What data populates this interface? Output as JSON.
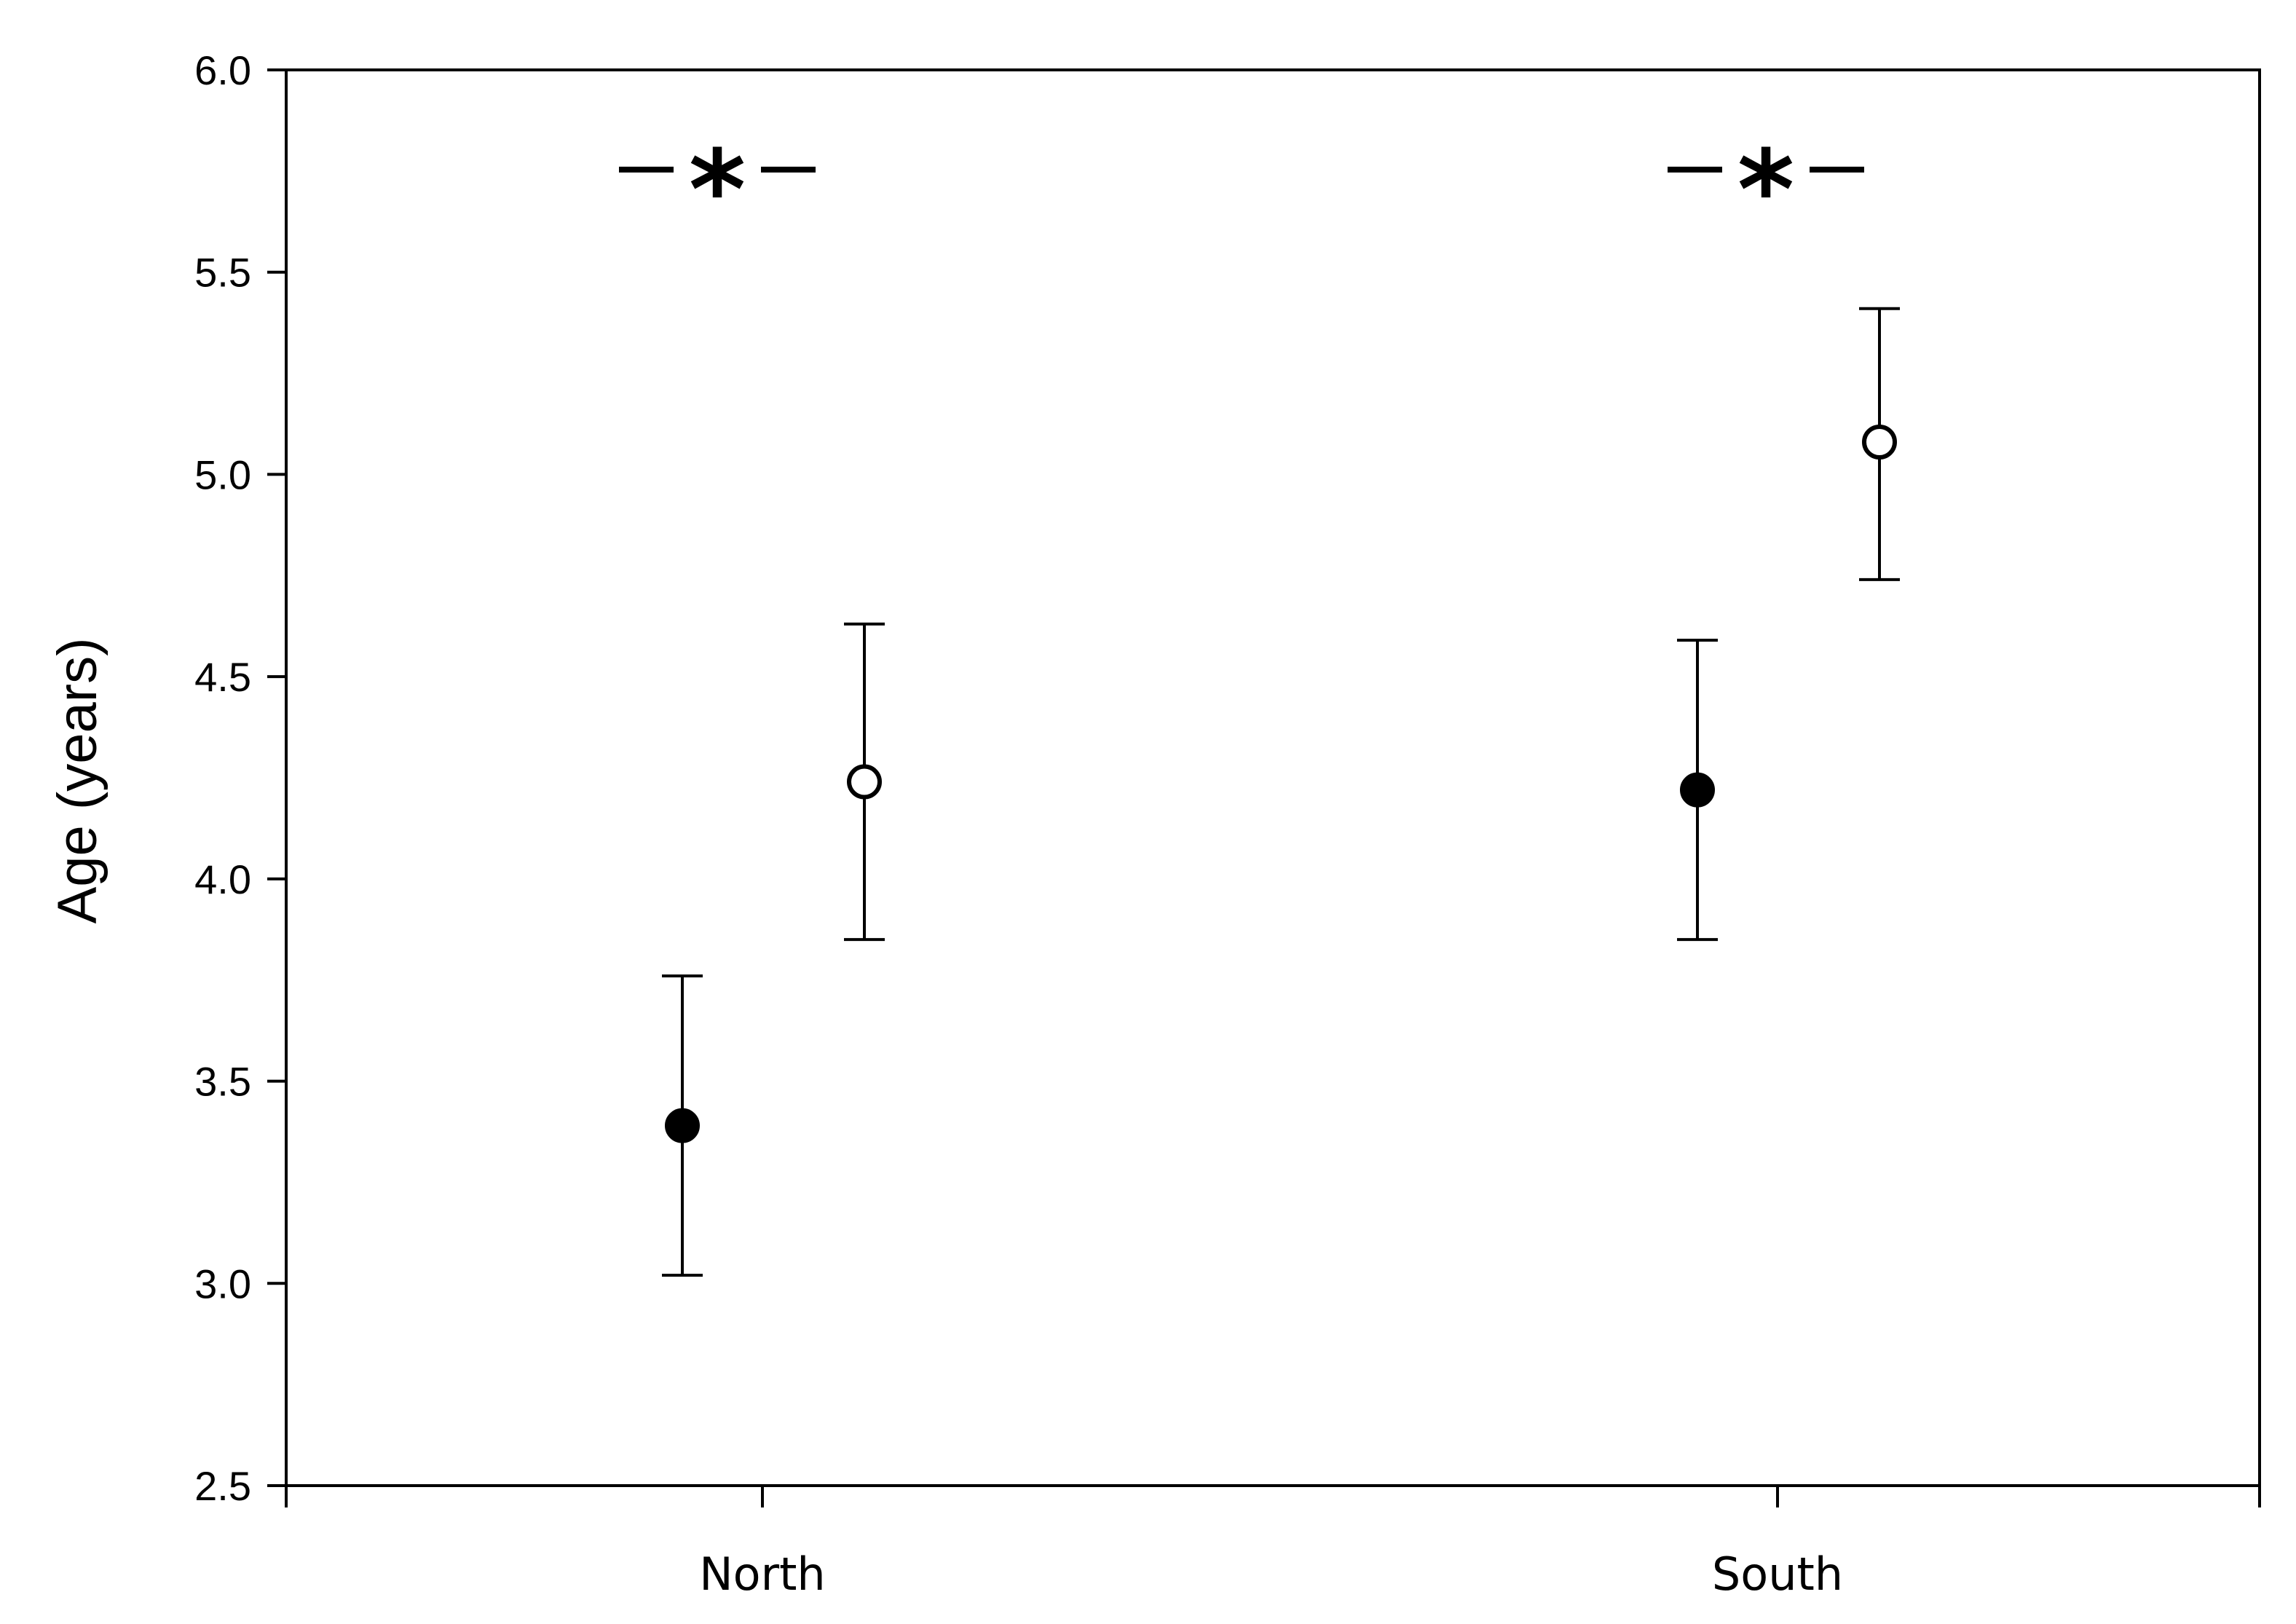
{
  "chart_data": {
    "type": "scatter",
    "title": "",
    "xlabel": "",
    "ylabel": "Age (years)",
    "ylim": [
      2.5,
      6.0
    ],
    "yticks": [
      "2.5",
      "3.0",
      "3.5",
      "4.0",
      "4.5",
      "5.0",
      "5.5",
      "6.0"
    ],
    "categories": [
      "North",
      "South"
    ],
    "grid": false,
    "legend": "none",
    "series": [
      {
        "marker": "filled-circle",
        "color": "#000000",
        "values": [
          3.39,
          4.22
        ],
        "error_low": [
          3.02,
          3.85
        ],
        "error_high": [
          3.76,
          4.59
        ]
      },
      {
        "marker": "open-circle",
        "color": "#000000",
        "values": [
          4.24,
          5.08
        ],
        "error_low": [
          3.85,
          4.74
        ],
        "error_high": [
          4.63,
          5.41
        ]
      }
    ],
    "annotations": [
      {
        "text": "*",
        "category": "North",
        "y": 5.75
      },
      {
        "text": "*",
        "category": "South",
        "y": 5.75
      }
    ]
  }
}
